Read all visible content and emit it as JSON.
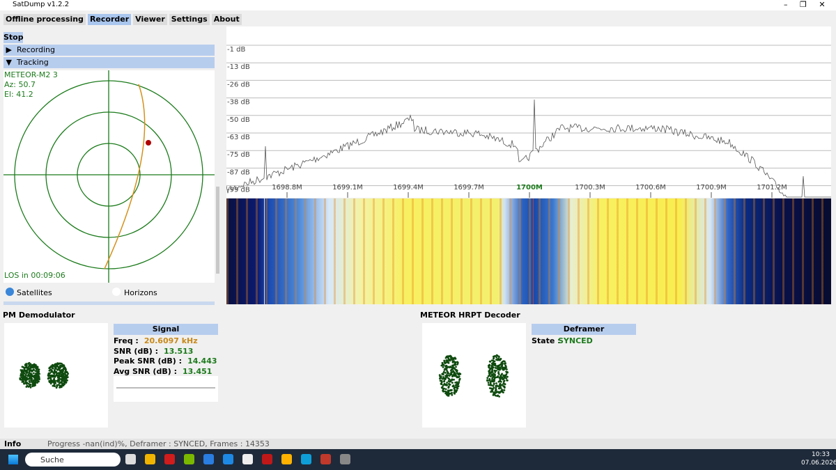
{
  "window": {
    "title": "SatDump v1.2.2"
  },
  "menu": [
    "Offline processing",
    "Recorder",
    "Viewer",
    "Settings",
    "About"
  ],
  "left_panel": {
    "stop": "Stop",
    "sections": [
      "Recording",
      "Tracking"
    ],
    "tracking": {
      "satellite": "METEOR-M2 3",
      "az": "Az: 50.7",
      "el": "El: 41.2",
      "los": "LOS in 00:09:06"
    },
    "options": [
      "Satellites",
      "Horizons"
    ]
  },
  "spectrum": {
    "db_labels": [
      "-1 dB",
      "-13 dB",
      "-26 dB",
      "-38 dB",
      "-50 dB",
      "-63 dB",
      "-75 dB",
      "-87 dB",
      "-99 dB"
    ],
    "freq_labels": [
      "1698.8M",
      "1699.1M",
      "1699.4M",
      "1699.7M",
      "1700M",
      "1700.3M",
      "1700.6M",
      "1700.9M",
      "1701.2M"
    ]
  },
  "demodulator": {
    "title": "PM Demodulator",
    "header": "Signal",
    "fields": [
      {
        "label": "Freq :",
        "value": "20.6097 kHz"
      },
      {
        "label": "SNR (dB) :",
        "value": "13.513"
      },
      {
        "label": "Peak SNR (dB) :",
        "value": "14.443"
      },
      {
        "label": "Avg SNR (dB) :",
        "value": "13.451"
      }
    ]
  },
  "decoder": {
    "title": "METEOR HRPT Decoder",
    "header": "Deframer",
    "state_label": "State :",
    "state": "SYNCED"
  },
  "status": {
    "label": "Info",
    "text": "Progress -nan(ind)%, Deframer : SYNCED, Frames : 14353"
  },
  "taskbar": {
    "search": "Suche",
    "time": "10:33",
    "date": "07.06.2026"
  }
}
